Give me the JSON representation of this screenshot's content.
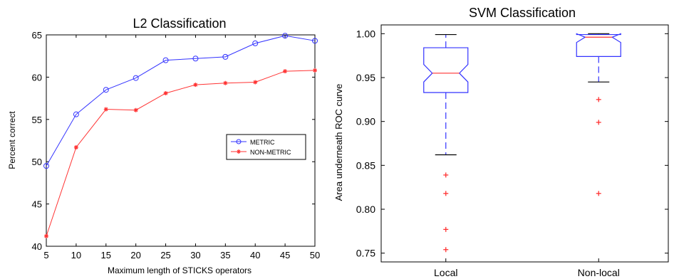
{
  "chart_data": [
    {
      "type": "line",
      "title": "L2 Classification",
      "xlabel": "Maximum length of STICKS operators",
      "ylabel": "Percent correct",
      "x": [
        5,
        10,
        15,
        20,
        25,
        30,
        35,
        40,
        45,
        50
      ],
      "xlim": [
        5,
        50
      ],
      "ylim": [
        40,
        65
      ],
      "x_ticks": [
        "5",
        "10",
        "15",
        "20",
        "25",
        "30",
        "35",
        "40",
        "45",
        "50"
      ],
      "y_ticks": [
        "40",
        "45",
        "50",
        "55",
        "60",
        "65"
      ],
      "legend_position": "right",
      "series": [
        {
          "name": "METRIC",
          "color": "#3333ff",
          "marker": "circle",
          "values": [
            49.5,
            55.6,
            58.5,
            59.9,
            62.0,
            62.2,
            62.4,
            64.0,
            64.9,
            64.3
          ]
        },
        {
          "name": "NON-METRIC",
          "color": "#ff3333",
          "marker": "star",
          "values": [
            41.2,
            51.7,
            56.2,
            56.1,
            58.1,
            59.1,
            59.3,
            59.4,
            60.7,
            60.8
          ]
        }
      ]
    },
    {
      "type": "box",
      "title": "SVM Classification",
      "xlabel": "",
      "ylabel": "Area underneath ROC curve",
      "categories": [
        "Local",
        "Non-local"
      ],
      "ylim": [
        0.74,
        1.01
      ],
      "y_ticks": [
        "0.75",
        "0.80",
        "0.85",
        "0.90",
        "0.95",
        "1.00"
      ],
      "box_color": "#3333ff",
      "median_color": "#ff3333",
      "boxes": [
        {
          "category": "Local",
          "whisker_low": 0.862,
          "q1": 0.933,
          "median": 0.955,
          "q3": 0.984,
          "whisker_high": 0.999,
          "notch_low": 0.945,
          "notch_high": 0.965,
          "outliers": [
            0.839,
            0.818,
            0.777,
            0.754
          ]
        },
        {
          "category": "Non-local",
          "whisker_low": 0.945,
          "q1": 0.974,
          "median": 0.996,
          "q3": 0.999,
          "whisker_high": 1.0,
          "notch_low": 0.99,
          "notch_high": 1.0,
          "outliers": [
            0.925,
            0.899,
            0.818
          ]
        }
      ]
    }
  ]
}
